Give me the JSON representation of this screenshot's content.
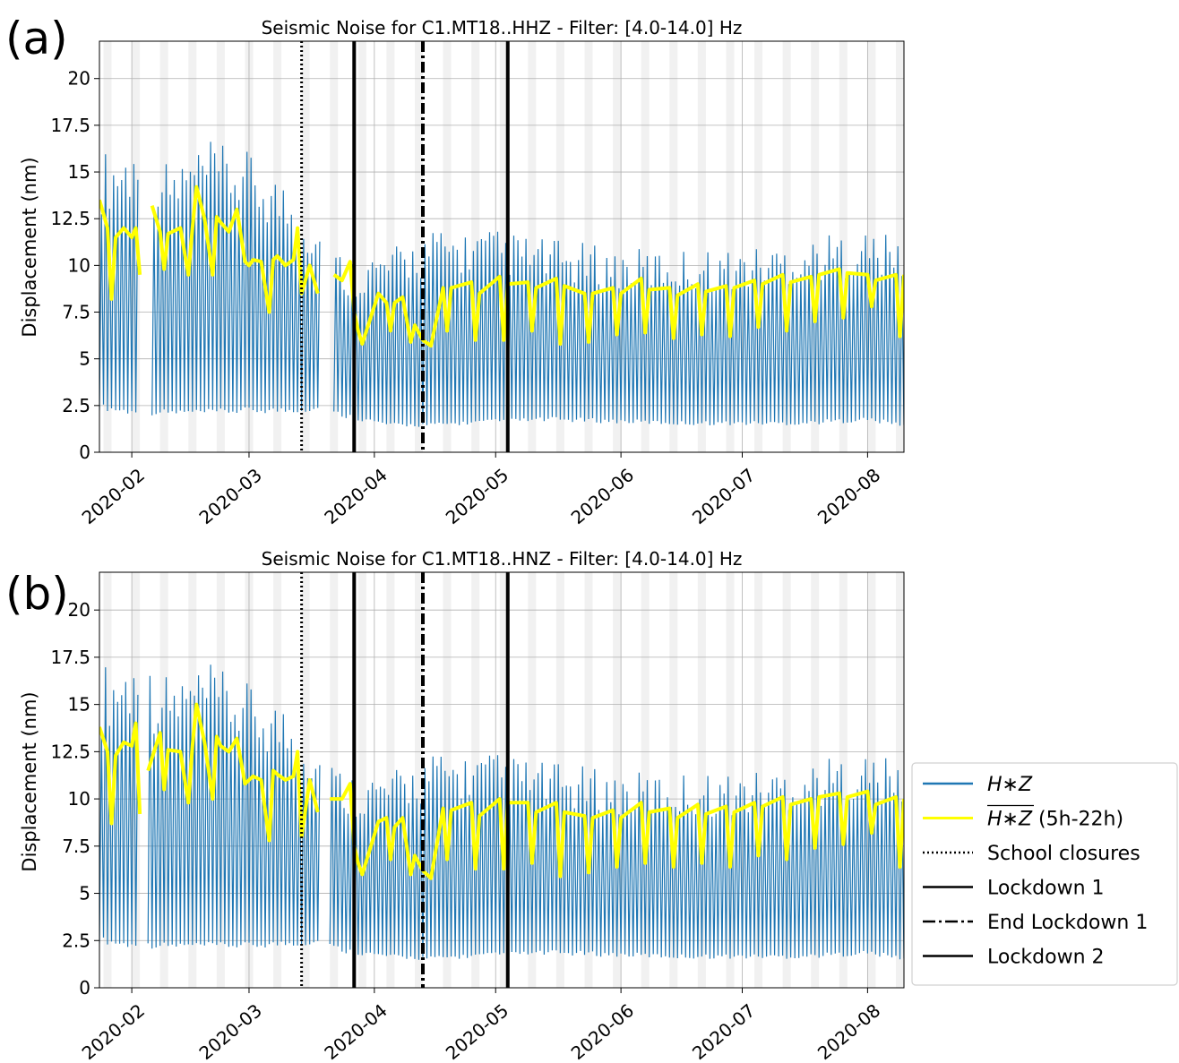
{
  "chart_data": [
    {
      "panel_label": "(a)",
      "type": "line",
      "title": "Seismic Noise for C1.MT18..HHZ - Filter: [4.0-14.0] Hz",
      "ylabel": "Displacement (nm)",
      "xlabel": "",
      "xlim": [
        "2020-01-24",
        "2020-08-10"
      ],
      "ylim": [
        0,
        22
      ],
      "xticks": [
        "2020-02",
        "2020-03",
        "2020-04",
        "2020-05",
        "2020-06",
        "2020-07",
        "2020-08"
      ],
      "yticks": [
        "0",
        "2.5",
        "5",
        "7.5",
        "10",
        "12.5",
        "15",
        "17.5",
        "20"
      ],
      "grid": true,
      "weekend_shading": true,
      "data_gaps": [
        [
          "2020-02-03",
          "2020-02-06"
        ],
        [
          "2020-03-19",
          "2020-03-22"
        ]
      ],
      "series": [
        {
          "name": "H*Z",
          "color": "#1f77b4",
          "x": [
            "2020-01-24",
            "2020-02-01",
            "2020-02-10",
            "2020-02-20",
            "2020-03-01",
            "2020-03-10",
            "2020-03-18",
            "2020-03-25",
            "2020-04-05",
            "2020-04-15",
            "2020-05-01",
            "2020-05-15",
            "2020-06-01",
            "2020-06-15",
            "2020-07-01",
            "2020-07-15",
            "2020-08-01",
            "2020-08-10"
          ],
          "daily_max": [
            15.5,
            16.0,
            15.0,
            16.0,
            15.5,
            14.0,
            12.0,
            10.0,
            10.5,
            11.5,
            11.5,
            11.0,
            10.5,
            10.5,
            10.5,
            11.0,
            11.5,
            11.0
          ],
          "daily_min": [
            2.5,
            2.2,
            2.2,
            2.2,
            2.3,
            2.3,
            2.4,
            2.0,
            1.5,
            1.5,
            1.7,
            1.8,
            1.7,
            1.6,
            1.6,
            1.6,
            1.8,
            1.5
          ]
        },
        {
          "name": "H*Z (5h-22h)",
          "color": "#ffff00",
          "x": [
            "2020-01-24",
            "2020-01-26",
            "2020-01-27",
            "2020-01-28",
            "2020-01-30",
            "2020-02-01",
            "2020-02-02",
            "2020-02-03",
            "2020-02-06",
            "2020-02-08",
            "2020-02-09",
            "2020-02-10",
            "2020-02-13",
            "2020-02-15",
            "2020-02-16",
            "2020-02-17",
            "2020-02-19",
            "2020-02-21",
            "2020-02-22",
            "2020-02-23",
            "2020-02-25",
            "2020-02-27",
            "2020-02-29",
            "2020-03-01",
            "2020-03-02",
            "2020-03-04",
            "2020-03-06",
            "2020-03-07",
            "2020-03-08",
            "2020-03-10",
            "2020-03-12",
            "2020-03-13",
            "2020-03-14",
            "2020-03-16",
            "2020-03-18",
            "2020-03-22",
            "2020-03-24",
            "2020-03-26",
            "2020-03-27",
            "2020-03-28",
            "2020-03-29",
            "2020-04-02",
            "2020-04-04",
            "2020-04-05",
            "2020-04-06",
            "2020-04-08",
            "2020-04-10",
            "2020-04-11",
            "2020-04-13",
            "2020-04-15",
            "2020-04-18",
            "2020-04-19",
            "2020-04-20",
            "2020-04-25",
            "2020-04-26",
            "2020-04-27",
            "2020-05-02",
            "2020-05-03",
            "2020-05-04",
            "2020-05-09",
            "2020-05-10",
            "2020-05-11",
            "2020-05-16",
            "2020-05-17",
            "2020-05-18",
            "2020-05-23",
            "2020-05-24",
            "2020-05-25",
            "2020-05-30",
            "2020-05-31",
            "2020-06-01",
            "2020-06-06",
            "2020-06-07",
            "2020-06-08",
            "2020-06-13",
            "2020-06-14",
            "2020-06-15",
            "2020-06-20",
            "2020-06-21",
            "2020-06-22",
            "2020-06-27",
            "2020-06-28",
            "2020-06-29",
            "2020-07-04",
            "2020-07-05",
            "2020-07-06",
            "2020-07-11",
            "2020-07-12",
            "2020-07-13",
            "2020-07-18",
            "2020-07-19",
            "2020-07-20",
            "2020-07-25",
            "2020-07-26",
            "2020-07-27",
            "2020-08-01",
            "2020-08-02",
            "2020-08-03",
            "2020-08-08",
            "2020-08-09",
            "2020-08-10"
          ],
          "y": [
            13.5,
            12.0,
            8.2,
            11.5,
            12.0,
            11.5,
            12.0,
            9.5,
            13.2,
            11.8,
            9.8,
            11.7,
            12.0,
            9.5,
            12.0,
            14.2,
            12.5,
            9.5,
            12.6,
            12.3,
            11.8,
            13.0,
            10.2,
            10.0,
            10.3,
            10.2,
            7.5,
            10.3,
            10.5,
            10.0,
            10.3,
            12.0,
            8.5,
            10.0,
            8.5,
            9.5,
            9.2,
            10.2,
            7.5,
            6.5,
            5.8,
            8.5,
            8.0,
            6.5,
            8.0,
            8.3,
            5.9,
            6.8,
            6.0,
            5.7,
            8.8,
            6.5,
            8.8,
            9.1,
            6.0,
            8.5,
            9.4,
            6.0,
            9.0,
            9.1,
            6.5,
            8.8,
            9.3,
            5.8,
            8.9,
            8.5,
            5.9,
            8.5,
            8.8,
            6.3,
            8.5,
            9.3,
            6.4,
            8.7,
            8.8,
            6.1,
            8.4,
            9.0,
            6.3,
            8.6,
            8.9,
            6.2,
            8.8,
            9.2,
            6.7,
            9.0,
            9.5,
            6.5,
            9.1,
            9.4,
            7.0,
            9.5,
            9.8,
            7.2,
            9.6,
            9.5,
            7.8,
            9.2,
            9.5,
            6.2,
            9.5
          ]
        }
      ],
      "vlines": [
        {
          "label": "School closures",
          "x": "2020-03-14",
          "style": "dotted"
        },
        {
          "label": "Lockdown 1",
          "x": "2020-03-27",
          "style": "solid"
        },
        {
          "label": "End Lockdown 1",
          "x": "2020-04-13",
          "style": "dashdot"
        },
        {
          "label": "Lockdown 2",
          "x": "2020-05-04",
          "style": "solid"
        }
      ]
    },
    {
      "panel_label": "(b)",
      "type": "line",
      "title": "Seismic Noise for C1.MT18..HNZ - Filter: [4.0-14.0] Hz",
      "ylabel": "Displacement (nm)",
      "xlabel": "",
      "xlim": [
        "2020-01-24",
        "2020-08-10"
      ],
      "ylim": [
        0,
        22
      ],
      "xticks": [
        "2020-02",
        "2020-03",
        "2020-04",
        "2020-05",
        "2020-06",
        "2020-07",
        "2020-08"
      ],
      "yticks": [
        "0",
        "2.5",
        "5",
        "7.5",
        "10",
        "12.5",
        "15",
        "17.5",
        "20"
      ],
      "grid": true,
      "weekend_shading": true,
      "data_gaps": [
        [
          "2020-02-03",
          "2020-02-05"
        ],
        [
          "2020-03-19",
          "2020-03-21"
        ]
      ],
      "series": [
        {
          "name": "H*Z",
          "color": "#1f77b4",
          "x": [
            "2020-01-24",
            "2020-02-01",
            "2020-02-10",
            "2020-02-20",
            "2020-03-01",
            "2020-03-10",
            "2020-03-18",
            "2020-03-25",
            "2020-04-05",
            "2020-04-15",
            "2020-05-01",
            "2020-05-15",
            "2020-06-01",
            "2020-06-15",
            "2020-07-01",
            "2020-07-15",
            "2020-08-01",
            "2020-08-10"
          ],
          "daily_max": [
            16.5,
            17.0,
            16.0,
            16.5,
            15.5,
            14.5,
            12.5,
            11.0,
            11.0,
            12.0,
            12.0,
            11.5,
            11.0,
            11.0,
            11.0,
            11.5,
            12.0,
            11.5
          ],
          "daily_min": [
            2.6,
            2.3,
            2.3,
            2.3,
            2.3,
            2.4,
            2.5,
            2.0,
            1.7,
            1.6,
            1.8,
            1.9,
            1.8,
            1.7,
            1.7,
            1.7,
            1.9,
            1.6
          ]
        },
        {
          "name": "H*Z (5h-22h)",
          "color": "#ffff00",
          "x": [
            "2020-01-24",
            "2020-01-26",
            "2020-01-27",
            "2020-01-28",
            "2020-01-30",
            "2020-02-01",
            "2020-02-02",
            "2020-02-03",
            "2020-02-05",
            "2020-02-08",
            "2020-02-09",
            "2020-02-10",
            "2020-02-13",
            "2020-02-15",
            "2020-02-16",
            "2020-02-17",
            "2020-02-19",
            "2020-02-21",
            "2020-02-22",
            "2020-02-23",
            "2020-02-25",
            "2020-02-27",
            "2020-02-29",
            "2020-03-01",
            "2020-03-02",
            "2020-03-04",
            "2020-03-06",
            "2020-03-07",
            "2020-03-08",
            "2020-03-10",
            "2020-03-12",
            "2020-03-13",
            "2020-03-14",
            "2020-03-16",
            "2020-03-18",
            "2020-03-21",
            "2020-03-24",
            "2020-03-26",
            "2020-03-27",
            "2020-03-28",
            "2020-03-29",
            "2020-04-02",
            "2020-04-04",
            "2020-04-05",
            "2020-04-06",
            "2020-04-08",
            "2020-04-10",
            "2020-04-11",
            "2020-04-13",
            "2020-04-15",
            "2020-04-18",
            "2020-04-19",
            "2020-04-20",
            "2020-04-25",
            "2020-04-26",
            "2020-04-27",
            "2020-05-02",
            "2020-05-03",
            "2020-05-04",
            "2020-05-09",
            "2020-05-10",
            "2020-05-11",
            "2020-05-16",
            "2020-05-17",
            "2020-05-18",
            "2020-05-23",
            "2020-05-24",
            "2020-05-25",
            "2020-05-30",
            "2020-05-31",
            "2020-06-01",
            "2020-06-06",
            "2020-06-07",
            "2020-06-08",
            "2020-06-13",
            "2020-06-14",
            "2020-06-15",
            "2020-06-20",
            "2020-06-21",
            "2020-06-22",
            "2020-06-27",
            "2020-06-28",
            "2020-06-29",
            "2020-07-04",
            "2020-07-05",
            "2020-07-06",
            "2020-07-11",
            "2020-07-12",
            "2020-07-13",
            "2020-07-18",
            "2020-07-19",
            "2020-07-20",
            "2020-07-25",
            "2020-07-26",
            "2020-07-27",
            "2020-08-01",
            "2020-08-02",
            "2020-08-03",
            "2020-08-08",
            "2020-08-09",
            "2020-08-10"
          ],
          "y": [
            13.8,
            12.5,
            8.7,
            12.3,
            13.0,
            12.8,
            14.0,
            9.2,
            11.5,
            13.5,
            10.5,
            12.6,
            12.5,
            9.8,
            12.8,
            15.0,
            13.0,
            10.0,
            13.3,
            12.8,
            12.5,
            13.2,
            10.8,
            11.0,
            11.2,
            11.0,
            7.8,
            11.5,
            11.3,
            11.0,
            11.2,
            12.5,
            8.0,
            11.0,
            9.3,
            10.0,
            10.0,
            10.8,
            7.5,
            6.6,
            6.0,
            8.8,
            9.0,
            6.8,
            8.5,
            9.0,
            6.0,
            7.0,
            6.2,
            5.8,
            9.5,
            6.8,
            9.4,
            9.8,
            6.3,
            9.1,
            10.0,
            6.3,
            9.8,
            9.8,
            6.6,
            9.3,
            9.8,
            5.9,
            9.3,
            9.1,
            6.1,
            9.0,
            9.4,
            6.4,
            9.0,
            9.8,
            6.6,
            9.3,
            9.5,
            6.4,
            9.0,
            9.7,
            6.6,
            9.2,
            9.6,
            6.4,
            9.3,
            9.8,
            7.0,
            9.6,
            10.1,
            6.8,
            9.7,
            10.0,
            7.4,
            10.1,
            10.3,
            7.6,
            10.1,
            10.4,
            8.2,
            9.7,
            10.1,
            6.4,
            10.0
          ]
        }
      ],
      "vlines": [
        {
          "label": "School closures",
          "x": "2020-03-14",
          "style": "dotted"
        },
        {
          "label": "Lockdown 1",
          "x": "2020-03-27",
          "style": "solid"
        },
        {
          "label": "End Lockdown 1",
          "x": "2020-04-13",
          "style": "dashdot"
        },
        {
          "label": "Lockdown 2",
          "x": "2020-05-04",
          "style": "solid"
        }
      ]
    }
  ],
  "legend": {
    "placement": "right of panel (b)",
    "entries": [
      {
        "label": "H∗Z",
        "label_font_style": "italic",
        "overline": false,
        "style": "solid",
        "color": "#1f77b4"
      },
      {
        "label": "H∗Z",
        "suffix": "(5h-22h)",
        "label_font_style": "italic",
        "overline": true,
        "style": "solid",
        "color": "#ffff00"
      },
      {
        "label": "School closures",
        "style": "dotted",
        "color": "#000000"
      },
      {
        "label": "Lockdown 1",
        "style": "solid",
        "color": "#000000"
      },
      {
        "label": "End Lockdown 1",
        "style": "dashdot",
        "color": "#000000"
      },
      {
        "label": "Lockdown 2",
        "style": "solid",
        "color": "#000000"
      }
    ]
  }
}
